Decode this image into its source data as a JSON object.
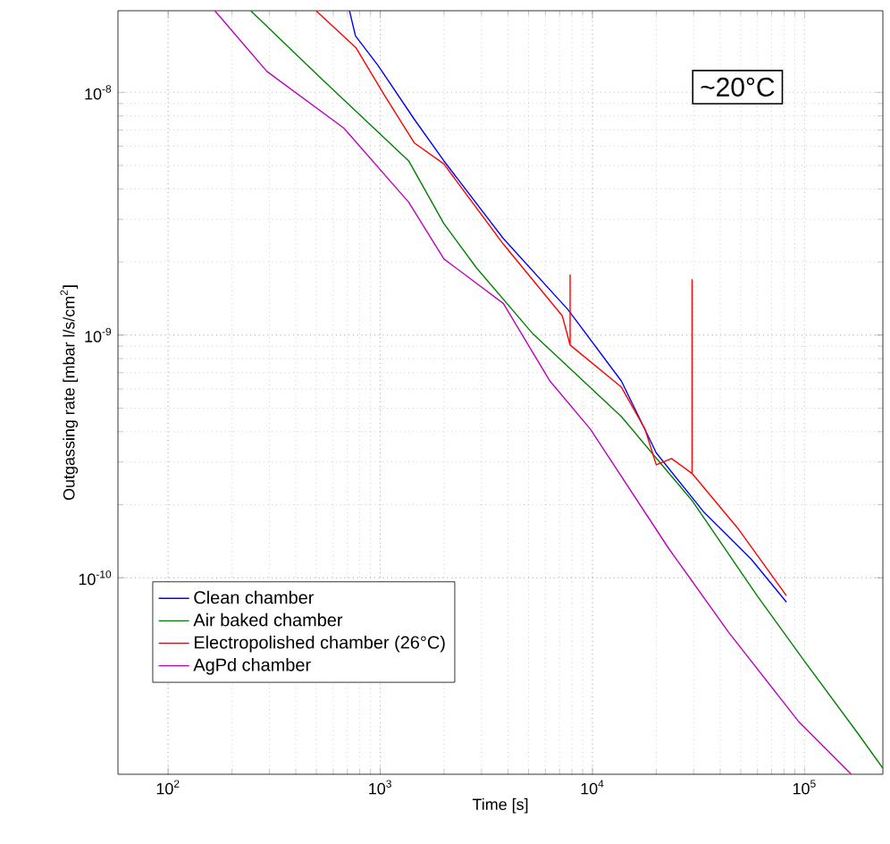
{
  "chart_data": {
    "type": "line",
    "xlabel": "Time [s]",
    "ylabel": "Outgassing rate [mbar l/s/cm$^{2}$]",
    "annotations": [
      "~20°C"
    ],
    "log": "xy",
    "grid": true,
    "legend": "bottom left",
    "marker": "none",
    "line_style": "solid",
    "xlim": [
      58,
      234000
    ],
    "ylim": [
      1.55e-11,
      2.17e-08
    ],
    "xticks": [
      {
        "value": 100,
        "label": "10$^{2}$"
      },
      {
        "value": 1000,
        "label": "10$^{3}$"
      },
      {
        "value": 10000,
        "label": "10$^{4}$"
      },
      {
        "value": 100000,
        "label": "10$^{5}$"
      }
    ],
    "yticks": [
      {
        "value": 1e-10,
        "label": "10$^{-10}$"
      },
      {
        "value": 1e-09,
        "label": "10$^{-9}$"
      },
      {
        "value": 1e-08,
        "label": "10$^{-8}$"
      }
    ],
    "series": [
      {
        "name": "Clean chamber",
        "color": "#0000ff",
        "x": [
          716,
          764,
          977,
          1445,
          1995,
          3802,
          7690,
          13700,
          20000,
          33600,
          56200,
          82200
        ],
        "values": [
          2.17e-08,
          1.71e-08,
          1.29e-08,
          7.76e-09,
          5.22e-09,
          2.5e-09,
          1.27e-09,
          6.46e-10,
          3.27e-10,
          1.86e-10,
          1.19e-10,
          7.94e-11
        ]
      },
      {
        "name": "Air baked chamber",
        "color": "#008000",
        "x": [
          245,
          521,
          1361,
          1995,
          2844,
          5250,
          13700,
          21400,
          29500,
          59800,
          100000,
          178000,
          234000
        ],
        "values": [
          2.17e-08,
          1.15e-08,
          5.22e-09,
          2.88e-09,
          1.89e-09,
          1.01e-09,
          4.61e-10,
          2.9e-10,
          2.08e-10,
          8.43e-11,
          4.53e-11,
          2.29e-11,
          1.64e-11
        ]
      },
      {
        "name": "Electropolished chamber (26°C)",
        "color": "#ff0000",
        "x": [
          498,
          767,
          1047,
          1445,
          1995,
          3802,
          7210,
          7850,
          7850,
          7850,
          13700,
          17700,
          20000,
          23600,
          29500,
          29500,
          29500,
          49000,
          82200
        ],
        "values": [
          2.17e-08,
          1.53e-08,
          9.73e-09,
          6.2e-09,
          5.07e-09,
          2.37e-09,
          1.2e-09,
          9.1e-10,
          1.77e-09,
          9.1e-10,
          6.1e-10,
          4.1e-10,
          2.92e-10,
          3.1e-10,
          2.69e-10,
          1.69e-09,
          2.69e-10,
          1.58e-10,
          8.43e-11
        ]
      },
      {
        "name": "AgPd chamber",
        "color": "#bf00bf",
        "x": [
          166,
          292,
          673,
          1361,
          1995,
          3802,
          6310,
          9772,
          22900,
          43600,
          93300,
          166000
        ],
        "values": [
          2.17e-08,
          1.22e-08,
          7.13e-09,
          3.53e-09,
          2.06e-09,
          1.35e-09,
          6.46e-10,
          4.1e-10,
          1.32e-10,
          6e-11,
          2.57e-11,
          1.55e-11
        ]
      }
    ]
  }
}
